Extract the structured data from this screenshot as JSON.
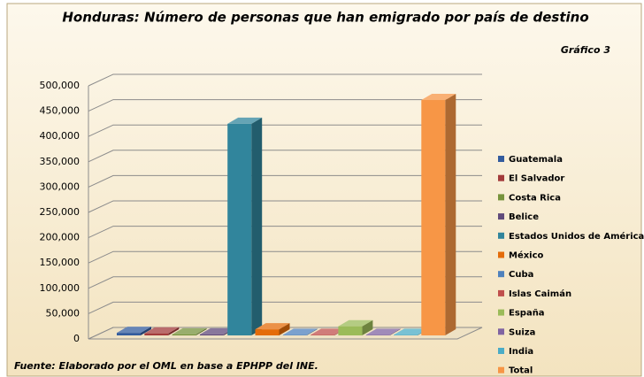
{
  "chart_data": {
    "type": "bar3d",
    "title": "Honduras: Número de personas que han emigrado por país de destino",
    "subtitle": "Gráfico 3",
    "source": "Fuente: Elaborado por el OML en base a EPHPP del INE.",
    "categories": [
      "Guatemala",
      "El Salvador",
      "Costa Rica",
      "Belice",
      "Estados Unidos de América",
      "México",
      "Cuba",
      "Islas Caimán",
      "España",
      "Suiza",
      "India",
      "Total"
    ],
    "values": [
      5000,
      4000,
      2000,
      2000,
      418000,
      12000,
      1000,
      1000,
      18000,
      1000,
      1000,
      465000
    ],
    "colors": [
      "#335c9e",
      "#a33b3b",
      "#77933c",
      "#604a7b",
      "#31859c",
      "#e46c0a",
      "#4f81bd",
      "#c0504d",
      "#9bbb59",
      "#8064a2",
      "#4bacc6",
      "#f79646"
    ],
    "ylim": [
      0,
      500000
    ],
    "yticks": [
      0,
      {
        "value": 50000,
        "label": "50,000"
      },
      {
        "value": 100000,
        "label": "100,000"
      },
      {
        "value": 150000,
        "label": "150,000"
      },
      {
        "value": 200000,
        "label": "200,000"
      },
      {
        "value": 250000,
        "label": "250,000"
      },
      {
        "value": 300000,
        "label": "300,000"
      },
      {
        "value": 350000,
        "label": "350,000"
      },
      {
        "value": 400000,
        "label": "400,000"
      },
      {
        "value": 450000,
        "label": "450,000"
      },
      {
        "value": 500000,
        "label": "500,000"
      }
    ],
    "grid": true,
    "legend": "right"
  }
}
